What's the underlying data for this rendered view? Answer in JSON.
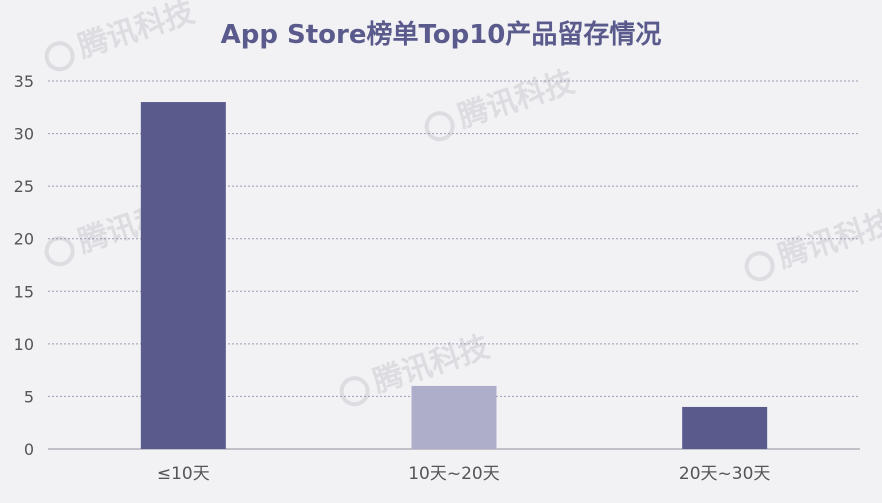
{
  "watermark": "腾讯科技",
  "chart_data": {
    "type": "bar",
    "title": "App Store榜单Top10产品留存情况",
    "categories": [
      "≤10天",
      "10天~20天",
      "20天~30天"
    ],
    "values": [
      33,
      6,
      4
    ],
    "ylim": [
      0,
      35
    ],
    "yticks": [
      "0",
      "5",
      "10",
      "15",
      "20",
      "25",
      "30",
      "35"
    ],
    "grid": true,
    "bar_colors": [
      "#5a5b8c",
      "#aeaecb",
      "#5a5b8c"
    ],
    "axis_color": "#b0b0b8",
    "grid_color": "#9a9ab4",
    "text_color": "#555555"
  }
}
